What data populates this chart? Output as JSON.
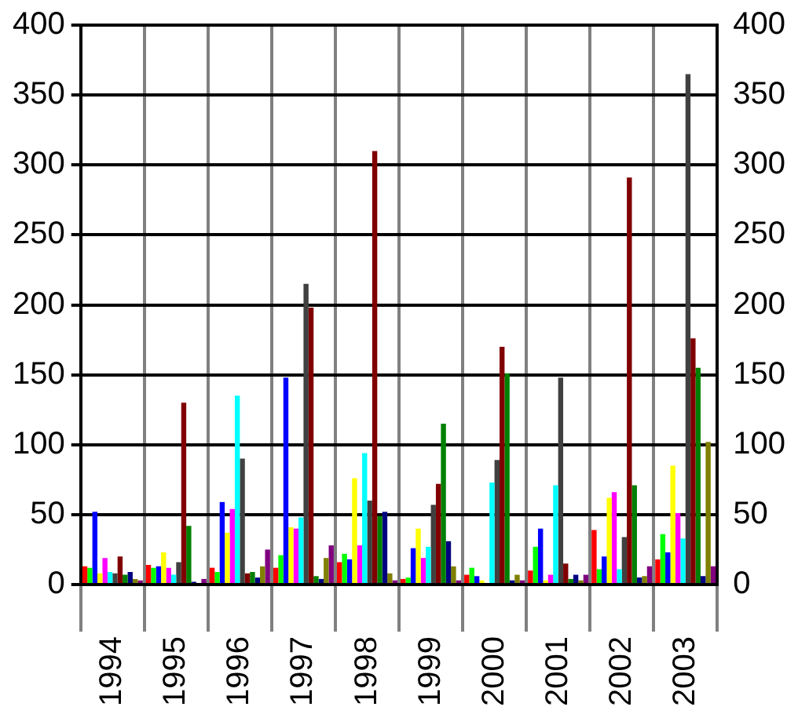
{
  "chart_data": {
    "type": "bar",
    "categories": [
      "1994",
      "1995",
      "1996",
      "1997",
      "1998",
      "1999",
      "2000",
      "2001",
      "2002",
      "2003"
    ],
    "series": [
      {
        "color": "#ff0000",
        "values": [
          13,
          14,
          12,
          12,
          16,
          4,
          7,
          10,
          39,
          18
        ]
      },
      {
        "color": "#00ff00",
        "values": [
          12,
          12,
          9,
          21,
          22,
          5,
          12,
          27,
          11,
          36
        ]
      },
      {
        "color": "#0000ff",
        "values": [
          52,
          13,
          59,
          148,
          18,
          26,
          6,
          40,
          20,
          23
        ]
      },
      {
        "color": "#ffff00",
        "values": [
          8,
          23,
          37,
          41,
          76,
          40,
          3,
          3,
          62,
          85
        ]
      },
      {
        "color": "#ff00ff",
        "values": [
          19,
          12,
          54,
          40,
          28,
          19,
          null,
          7,
          66,
          51
        ]
      },
      {
        "color": "#00ffff",
        "values": [
          9,
          7,
          135,
          48,
          94,
          27,
          73,
          71,
          11,
          33
        ]
      },
      {
        "color": "#404040",
        "values": [
          8,
          16,
          90,
          215,
          60,
          57,
          89,
          148,
          34,
          365
        ]
      },
      {
        "color": "#800000",
        "values": [
          20,
          130,
          8,
          198,
          310,
          72,
          170,
          15,
          291,
          176
        ]
      },
      {
        "color": "#008000",
        "values": [
          7,
          42,
          9,
          6,
          49,
          115,
          151,
          4,
          71,
          155
        ]
      },
      {
        "color": "#000080",
        "values": [
          9,
          2,
          5,
          4,
          52,
          31,
          3,
          7,
          5,
          6
        ]
      },
      {
        "color": "#808000",
        "values": [
          4,
          null,
          13,
          19,
          8,
          13,
          7,
          3,
          6,
          102
        ]
      },
      {
        "color": "#800080",
        "values": [
          3,
          4,
          25,
          28,
          3,
          3,
          3,
          7,
          13,
          13
        ]
      }
    ],
    "ylim": [
      0,
      400
    ],
    "yticks": [
      0,
      50,
      100,
      150,
      200,
      250,
      300,
      350,
      400
    ],
    "y2lim": [
      0,
      400
    ],
    "y2ticks": [
      0,
      50,
      100,
      150,
      200,
      250,
      300,
      350,
      400
    ],
    "grid": true,
    "legend": false
  }
}
